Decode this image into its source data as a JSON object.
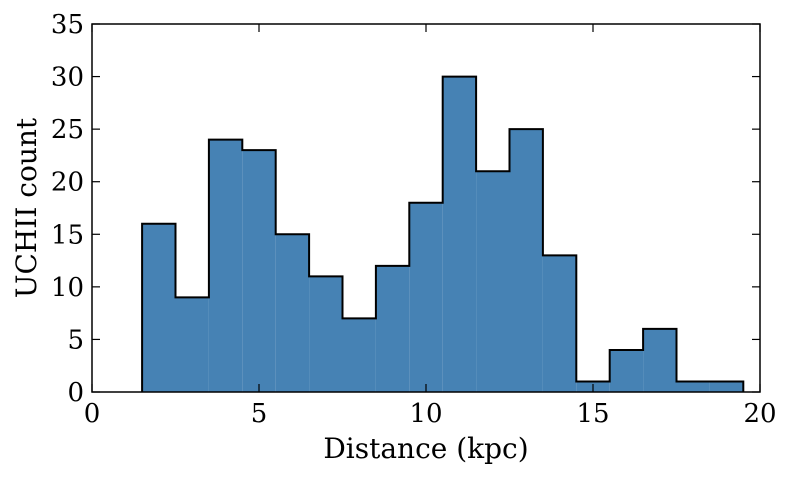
{
  "chart_data": {
    "type": "bar",
    "subtype": "histogram",
    "title": "",
    "xlabel": "Distance (kpc)",
    "ylabel": "UCHII count",
    "xlim": [
      0,
      20
    ],
    "ylim": [
      0,
      35
    ],
    "xticks": [
      0,
      5,
      10,
      15,
      20
    ],
    "yticks": [
      0,
      5,
      10,
      15,
      20,
      25,
      30,
      35
    ],
    "bin_width": 1,
    "bins": [
      {
        "x0": 1.5,
        "x1": 2.5,
        "value": 16
      },
      {
        "x0": 2.5,
        "x1": 3.5,
        "value": 9
      },
      {
        "x0": 3.5,
        "x1": 4.5,
        "value": 24
      },
      {
        "x0": 4.5,
        "x1": 5.5,
        "value": 23
      },
      {
        "x0": 5.5,
        "x1": 6.5,
        "value": 15
      },
      {
        "x0": 6.5,
        "x1": 7.5,
        "value": 11
      },
      {
        "x0": 7.5,
        "x1": 8.5,
        "value": 7
      },
      {
        "x0": 8.5,
        "x1": 9.5,
        "value": 12
      },
      {
        "x0": 9.5,
        "x1": 10.5,
        "value": 18
      },
      {
        "x0": 10.5,
        "x1": 11.5,
        "value": 30
      },
      {
        "x0": 11.5,
        "x1": 12.5,
        "value": 21
      },
      {
        "x0": 12.5,
        "x1": 13.5,
        "value": 25
      },
      {
        "x0": 13.5,
        "x1": 14.5,
        "value": 13
      },
      {
        "x0": 14.5,
        "x1": 15.5,
        "value": 1
      },
      {
        "x0": 15.5,
        "x1": 16.5,
        "value": 4
      },
      {
        "x0": 16.5,
        "x1": 17.5,
        "value": 6
      },
      {
        "x0": 17.5,
        "x1": 18.5,
        "value": 1
      },
      {
        "x0": 18.5,
        "x1": 19.5,
        "value": 1
      }
    ],
    "grid": false,
    "legend": "none",
    "colors": {
      "fill": "#4682b4",
      "edge": "#000000"
    }
  }
}
